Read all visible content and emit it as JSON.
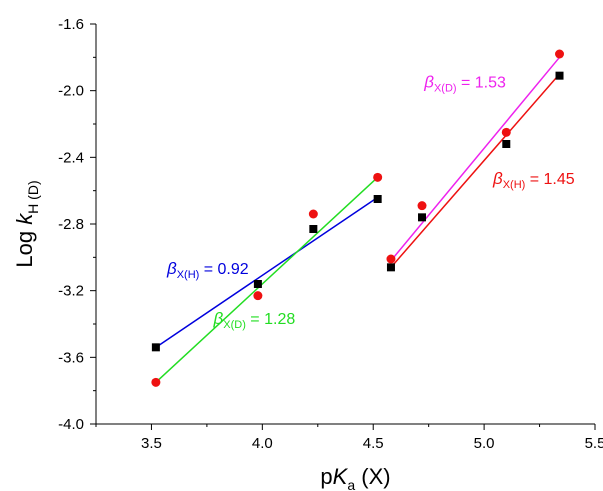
{
  "chart_data": {
    "type": "scatter",
    "title": "",
    "xlabel": {
      "base": "p",
      "italic": "K",
      "sub": "a",
      "tail": " (X)"
    },
    "ylabel": {
      "base": "Log ",
      "italic": "k",
      "sub": "H (D)"
    },
    "xlim": [
      3.25,
      5.5
    ],
    "ylim": [
      -4.0,
      -1.6
    ],
    "xticks": [
      3.5,
      4.0,
      4.5,
      5.0,
      5.5
    ],
    "yticks": [
      -4.0,
      -3.6,
      -3.2,
      -2.8,
      -2.4,
      -2.0,
      -1.6
    ],
    "xtick_labels": [
      "3.5",
      "4.0",
      "4.5",
      "5.0",
      "5.5"
    ],
    "ytick_labels": [
      "-4.0",
      "-3.6",
      "-3.2",
      "-2.8",
      "-2.4",
      "-2.0",
      "-1.6"
    ],
    "grid": false,
    "series": [
      {
        "marker": "square",
        "color": "#000000",
        "line_color": "#0000dd",
        "x": [
          3.52,
          3.98,
          4.23,
          4.52
        ],
        "y": [
          -3.54,
          -3.16,
          -2.83,
          -2.65
        ],
        "fit_x": [
          3.52,
          4.52
        ],
        "fit_y": [
          -3.54,
          -2.64
        ]
      },
      {
        "marker": "circle",
        "color": "#ee1111",
        "line_color": "#22dd22",
        "x": [
          3.52,
          3.98,
          4.23,
          4.52
        ],
        "y": [
          -3.75,
          -3.23,
          -2.74,
          -2.52
        ],
        "fit_x": [
          3.52,
          4.52
        ],
        "fit_y": [
          -3.75,
          -2.52
        ]
      },
      {
        "marker": "square",
        "color": "#000000",
        "line_color": "#ee1111",
        "x": [
          4.58,
          4.72,
          5.1,
          5.34
        ],
        "y": [
          -3.06,
          -2.76,
          -2.32,
          -1.91
        ],
        "fit_x": [
          4.58,
          5.34
        ],
        "fit_y": [
          -3.06,
          -1.9
        ]
      },
      {
        "marker": "circle",
        "color": "#ee1111",
        "line_color": "#ee22ee",
        "x": [
          4.58,
          4.72,
          5.1,
          5.34
        ],
        "y": [
          -3.01,
          -2.69,
          -2.25,
          -1.78
        ],
        "fit_x": [
          4.58,
          5.34
        ],
        "fit_y": [
          -3.02,
          -1.8
        ]
      }
    ],
    "annotations": [
      {
        "greek": "β",
        "sub": "X(H)",
        "value": " = 0.92",
        "color": "#0000dd",
        "anchor_x": 3.57,
        "anchor_y": -3.1
      },
      {
        "greek": "β",
        "sub": "X(D)",
        "value": " = 1.28",
        "color": "#22dd22",
        "anchor_x": 3.78,
        "anchor_y": -3.4
      },
      {
        "greek": "β",
        "sub": "X(D)",
        "value": " = 1.53",
        "color": "#ee22ee",
        "anchor_x": 4.73,
        "anchor_y": -1.98
      },
      {
        "greek": "β",
        "sub": "X(H)",
        "value": " = 1.45",
        "color": "#ee1111",
        "anchor_x": 5.04,
        "anchor_y": -2.56
      }
    ]
  }
}
